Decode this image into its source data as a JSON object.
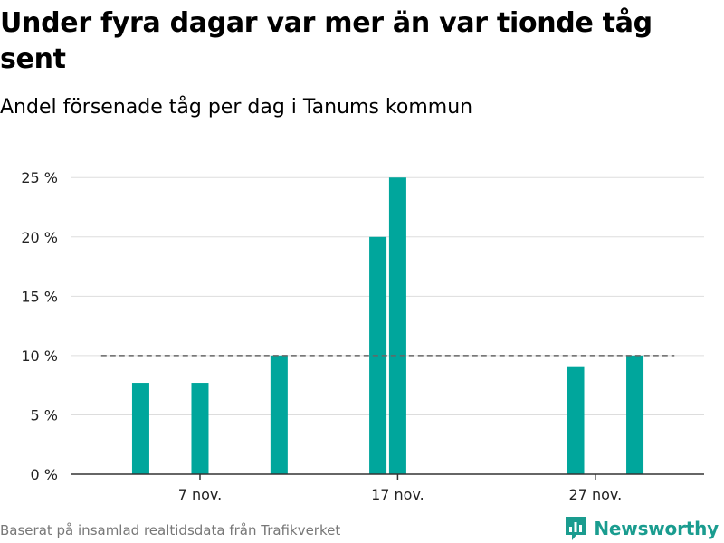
{
  "header": {
    "title": "Under fyra dagar var mer än var tionde tåg sent",
    "subtitle": "Andel försenade tåg per dag i Tanums kommun"
  },
  "footer": {
    "source": "Baserat på insamlad realtidsdata från Trafikverket",
    "brand": "Newsworthy"
  },
  "colors": {
    "bar": "#00a69c",
    "reference_line": "#666666",
    "grid": "#dddddd",
    "axis": "#333333",
    "brand": "#1a9c8f"
  },
  "icons": {
    "brand": "newsworthy-chart-icon"
  },
  "chart_data": {
    "type": "bar",
    "x": [
      "4 nov.",
      "7 nov.",
      "11 nov.",
      "16 nov.",
      "17 nov.",
      "26 nov.",
      "29 nov."
    ],
    "x_day_of_november": [
      4,
      7,
      11,
      16,
      17,
      26,
      29
    ],
    "values": [
      7.7,
      7.7,
      10,
      20,
      25,
      9.1,
      10
    ],
    "xlim_day_of_november": [
      0.5,
      32.5
    ],
    "ylim": [
      0,
      27
    ],
    "y_ticks": [
      0,
      5,
      10,
      15,
      20,
      25
    ],
    "y_tick_labels": [
      "0 %",
      "5 %",
      "10 %",
      "15 %",
      "20 %",
      "25 %"
    ],
    "x_ticks_day_of_november": [
      7,
      17,
      27
    ],
    "x_tick_labels": [
      "7 nov.",
      "17 nov.",
      "27 nov."
    ],
    "reference_line": {
      "value": 10,
      "style": "dashed",
      "from_day": 2,
      "to_day": 31
    },
    "grid": true,
    "legend": "none",
    "xlabel": "",
    "ylabel": ""
  }
}
